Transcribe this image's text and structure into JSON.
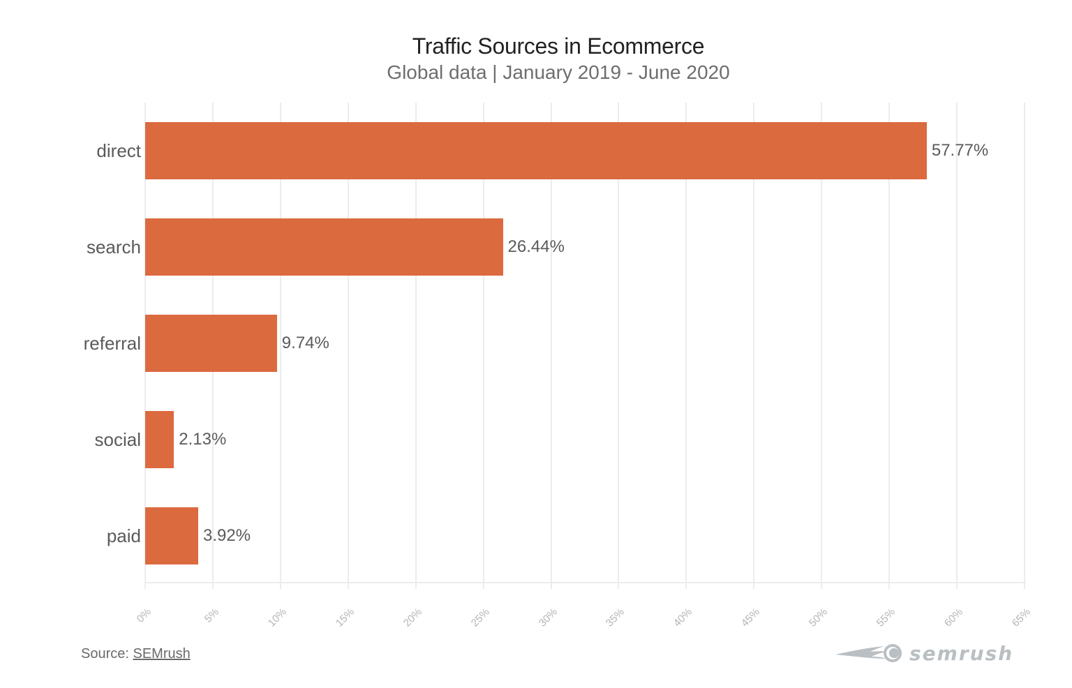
{
  "header": {
    "title": "Traffic Sources in Ecommerce",
    "subtitle": "Global data | January 2019 - June 2020"
  },
  "footer": {
    "source_prefix": "Source: ",
    "source_link": "SEMrush",
    "logo_text": "semrush"
  },
  "colors": {
    "bar": "#dc6a3f",
    "grid": "#ececec",
    "logo": "#b9bfc3"
  },
  "chart_data": {
    "type": "bar",
    "orientation": "horizontal",
    "title": "Traffic Sources in Ecommerce",
    "subtitle": "Global data | January 2019 - June 2020",
    "categories": [
      "direct",
      "search",
      "referral",
      "social",
      "paid"
    ],
    "values": [
      57.77,
      26.44,
      9.74,
      2.13,
      3.92
    ],
    "value_labels": [
      "57.77%",
      "26.44%",
      "9.74%",
      "2.13%",
      "3.92%"
    ],
    "xlabel": "",
    "ylabel": "",
    "xlim": [
      0,
      65
    ],
    "x_ticks": [
      "0%",
      "5%",
      "10%",
      "15%",
      "20%",
      "25%",
      "30%",
      "35%",
      "40%",
      "45%",
      "50%",
      "55%",
      "60%",
      "65%"
    ],
    "grid": true,
    "legend": false,
    "source": "Source: SEMrush"
  }
}
